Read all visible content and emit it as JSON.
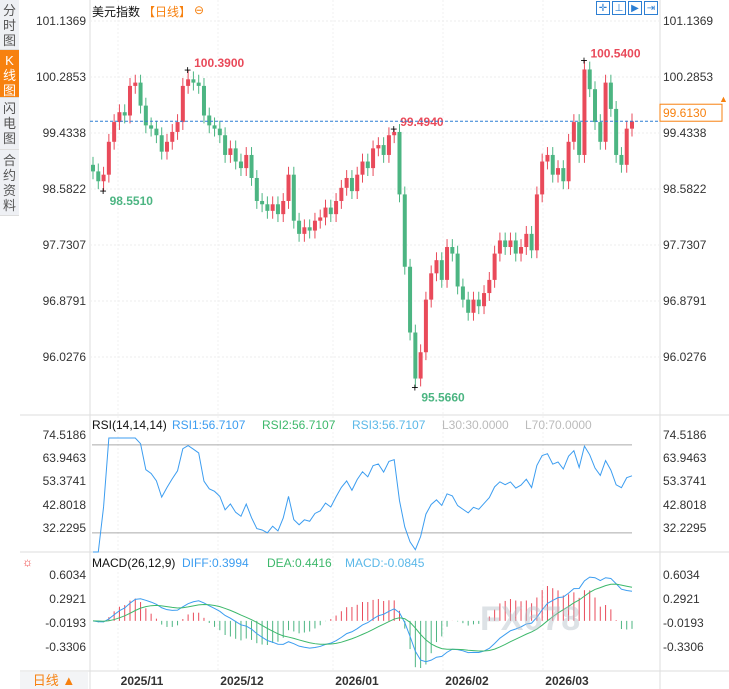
{
  "sidebar": {
    "tabs": [
      {
        "label": "分时图"
      },
      {
        "label": "K线图",
        "active": true
      },
      {
        "label": "闪电图"
      },
      {
        "label": "合约资料"
      }
    ]
  },
  "header": {
    "title": "美元指数",
    "period": "【日线】",
    "toolbar_icons": [
      "crosshair-icon",
      "range-icon",
      "play-icon",
      "jump-end-icon"
    ]
  },
  "period_selector": {
    "label": "日线 ▲"
  },
  "watermark": "FX678",
  "colors": {
    "up": "#e94a5a",
    "down": "#4cb582",
    "accent": "#f7810f",
    "rsi1": "#3c9df0",
    "dea": "#3db86b"
  },
  "chart_data": [
    {
      "type": "candlestick",
      "title": "美元指数",
      "yticks": [
        "101.1369",
        "100.2853",
        "99.4338",
        "98.5822",
        "97.7307",
        "96.8791",
        "96.0276"
      ],
      "ylim": [
        96.0276,
        101.1369
      ],
      "xticks": [
        "2025/11",
        "2025/12",
        "2026/01",
        "2026/02",
        "2026/03"
      ],
      "last_price": "99.6130",
      "annotations": [
        {
          "label": "98.5510",
          "index": 2,
          "type": "low"
        },
        {
          "label": "100.3900",
          "index": 18,
          "type": "high"
        },
        {
          "label": "99.4940",
          "index": 57,
          "type": "high"
        },
        {
          "label": "95.5660",
          "index": 61,
          "type": "low"
        },
        {
          "label": "100.5400",
          "index": 93,
          "type": "high"
        }
      ],
      "close": [
        98.85,
        98.7,
        98.8,
        99.3,
        99.6,
        99.75,
        99.7,
        100.15,
        100.2,
        99.85,
        99.55,
        99.5,
        99.4,
        99.15,
        99.3,
        99.45,
        99.6,
        100.15,
        100.25,
        100.2,
        100.15,
        99.7,
        99.55,
        99.5,
        99.4,
        99.1,
        99.2,
        99.0,
        98.9,
        99.1,
        98.75,
        98.4,
        98.35,
        98.25,
        98.35,
        98.2,
        98.4,
        98.8,
        98.1,
        97.9,
        98.0,
        97.95,
        98.1,
        98.15,
        98.3,
        98.2,
        98.4,
        98.6,
        98.75,
        98.55,
        98.8,
        99.0,
        98.9,
        99.2,
        99.25,
        99.1,
        99.4,
        99.45,
        98.5,
        97.4,
        96.4,
        95.7,
        96.1,
        96.9,
        97.3,
        97.5,
        97.2,
        97.7,
        97.6,
        97.1,
        96.9,
        96.7,
        96.9,
        96.8,
        97.0,
        97.2,
        97.6,
        97.8,
        97.7,
        97.8,
        97.6,
        97.7,
        97.9,
        97.65,
        98.5,
        99.0,
        99.1,
        98.8,
        98.9,
        98.7,
        99.3,
        99.6,
        99.1,
        100.4,
        100.1,
        99.6,
        99.3,
        100.2,
        99.8,
        99.1,
        98.95,
        99.5,
        99.61
      ]
    },
    {
      "type": "line",
      "title": "RSI(14,14,14)",
      "legend": [
        "RSI1:56.7107",
        "RSI2:56.7107",
        "RSI3:56.7107",
        "L30:30.0000",
        "L70:70.0000"
      ],
      "yticks": [
        "74.5186",
        "63.9463",
        "53.3741",
        "42.8018",
        "32.2295"
      ],
      "levels": [
        30,
        70
      ]
    },
    {
      "type": "line",
      "title": "MACD(26,12,9)",
      "legend": [
        "DIFF:0.3994",
        "DEA:0.4416",
        "MACD:-0.0845"
      ],
      "yticks": [
        "0.6034",
        "0.2921",
        "-0.0193",
        "-0.3306"
      ]
    }
  ]
}
